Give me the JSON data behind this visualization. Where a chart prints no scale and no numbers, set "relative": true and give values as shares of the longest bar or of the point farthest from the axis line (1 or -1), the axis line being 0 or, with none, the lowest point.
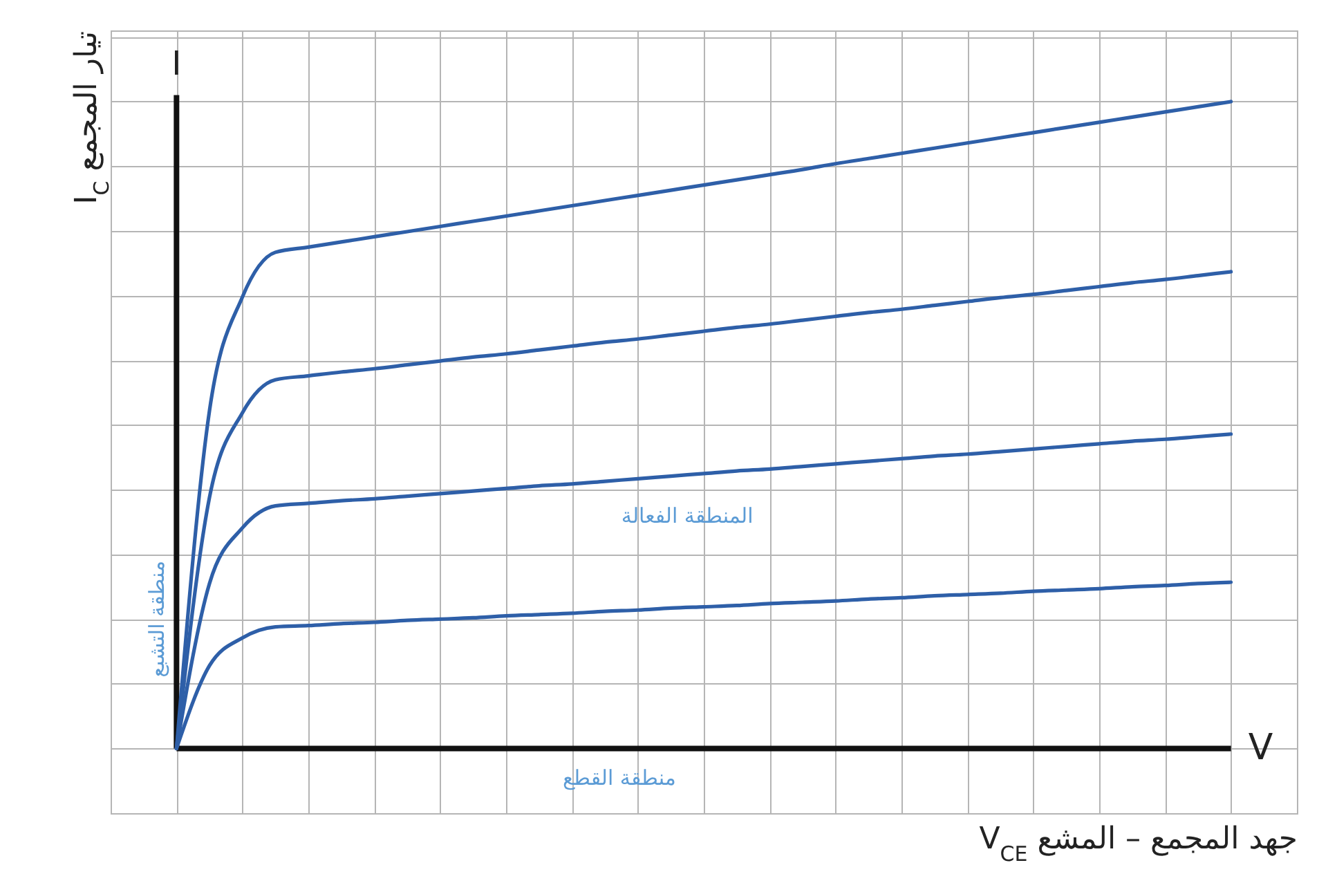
{
  "chart_data": {
    "type": "line",
    "relative": true,
    "grid": true,
    "xlabel": "جهد المجمع – المشع V$_{CE}$",
    "ylabel": "تيار المجمع I$_{C}$",
    "annotations": [
      "المنطقة الفعالة",
      "منطقة التشبع",
      "منطقة القطع",
      "I",
      "V"
    ],
    "categories": [
      null,
      null,
      null,
      null,
      null,
      null,
      null,
      null,
      null,
      null,
      null,
      null,
      null,
      null,
      null,
      null,
      null,
      null,
      null,
      null,
      null,
      null,
      null,
      null,
      null,
      null,
      null,
      null,
      null,
      null,
      null,
      null,
      null
    ],
    "series": [
      {
        "color": "#2e5fa8",
        "values": [
          0,
          0.522,
          0.698,
          0.767,
          0.775,
          0.783,
          0.791,
          0.799,
          0.807,
          0.815,
          0.823,
          0.831,
          0.839,
          0.847,
          0.855,
          0.863,
          0.871,
          0.879,
          0.887,
          0.895,
          0.904,
          0.912,
          0.92,
          0.928,
          0.936,
          0.944,
          0.952,
          0.96,
          0.968,
          0.976,
          0.984,
          0.992,
          1.0
        ]
      },
      {
        "color": "#2e5fa8",
        "values": [
          0,
          0.388,
          0.519,
          0.57,
          0.576,
          0.582,
          0.587,
          0.593,
          0.599,
          0.605,
          0.61,
          0.616,
          0.622,
          0.628,
          0.633,
          0.639,
          0.645,
          0.651,
          0.656,
          0.662,
          0.668,
          0.674,
          0.679,
          0.685,
          0.691,
          0.697,
          0.702,
          0.708,
          0.714,
          0.72,
          0.725,
          0.731,
          0.737
        ]
      },
      {
        "color": "#2e5fa8",
        "values": [
          0,
          0.255,
          0.341,
          0.375,
          0.379,
          0.383,
          0.386,
          0.39,
          0.394,
          0.398,
          0.402,
          0.406,
          0.409,
          0.413,
          0.417,
          0.421,
          0.425,
          0.429,
          0.432,
          0.436,
          0.44,
          0.444,
          0.448,
          0.452,
          0.455,
          0.459,
          0.463,
          0.467,
          0.471,
          0.475,
          0.478,
          0.482,
          0.486
        ]
      },
      {
        "color": "#2e5fa8",
        "values": [
          0,
          0.128,
          0.171,
          0.188,
          0.19,
          0.193,
          0.195,
          0.198,
          0.2,
          0.202,
          0.205,
          0.207,
          0.209,
          0.212,
          0.214,
          0.217,
          0.219,
          0.221,
          0.224,
          0.226,
          0.228,
          0.231,
          0.233,
          0.236,
          0.238,
          0.24,
          0.243,
          0.245,
          0.247,
          0.25,
          0.252,
          0.255,
          0.257
        ]
      }
    ]
  }
}
